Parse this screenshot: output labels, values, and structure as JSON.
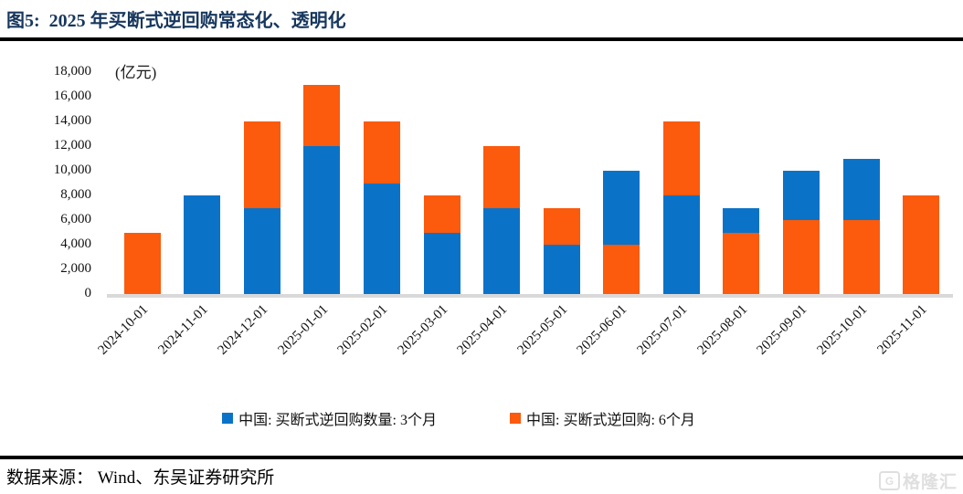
{
  "header": {
    "title": "图5:  2025 年买断式逆回购常态化、透明化"
  },
  "chart_data": {
    "type": "bar",
    "stacked": true,
    "title": "2025 年买断式逆回购常态化、透明化",
    "unit_label": "(亿元)",
    "xlabel": "",
    "ylabel": "",
    "ylim": [
      0,
      18000
    ],
    "ytick_step": 2000,
    "ytick_labels": [
      "0",
      "2,000",
      "4,000",
      "6,000",
      "8,000",
      "10,000",
      "12,000",
      "14,000",
      "16,000",
      "18,000"
    ],
    "grid": false,
    "legend_position": "bottom",
    "categories": [
      "2024-10-01",
      "2024-11-01",
      "2024-12-01",
      "2025-01-01",
      "2025-02-01",
      "2025-03-01",
      "2025-04-01",
      "2025-05-01",
      "2025-06-01",
      "2025-07-01",
      "2025-08-01",
      "2025-09-01",
      "2025-10-01",
      "2025-11-01"
    ],
    "series": [
      {
        "name": "中国: 买断式逆回购数量: 3个月",
        "color": "#0a73c8",
        "values": [
          0,
          8000,
          7000,
          12000,
          9000,
          5000,
          7000,
          4000,
          6000,
          8000,
          2000,
          4000,
          5000,
          0
        ]
      },
      {
        "name": "中国: 买断式逆回购: 6个月",
        "color": "#fc5a0d",
        "values": [
          5000,
          0,
          7000,
          5000,
          5000,
          3000,
          5000,
          3000,
          4000,
          6000,
          5000,
          6000,
          6000,
          8000
        ]
      }
    ],
    "stack_order_bottom_to_top": [
      [
        1
      ],
      [
        0
      ],
      [
        0,
        1
      ],
      [
        0,
        1
      ],
      [
        0,
        1
      ],
      [
        0,
        1
      ],
      [
        0,
        1
      ],
      [
        0,
        1
      ],
      [
        1,
        0
      ],
      [
        0,
        1
      ],
      [
        1,
        0
      ],
      [
        1,
        0
      ],
      [
        1,
        0
      ],
      [
        1
      ]
    ],
    "totals": [
      5000,
      8000,
      14000,
      17000,
      14000,
      8000,
      12000,
      7000,
      10000,
      14000,
      7000,
      10000,
      11000,
      8000
    ]
  },
  "footer": {
    "source": "数据来源： Wind、东吴证券研究所"
  },
  "watermark": {
    "brand": "格隆汇",
    "icon_letter": "G"
  },
  "colors": {
    "title": "#17375e",
    "series_3m_blue": "#0a73c8",
    "series_6m_orange": "#fc5a0d",
    "axis_baseline": "#d9d9d9",
    "divider": "#000000",
    "watermark": "#dcdcdc"
  }
}
